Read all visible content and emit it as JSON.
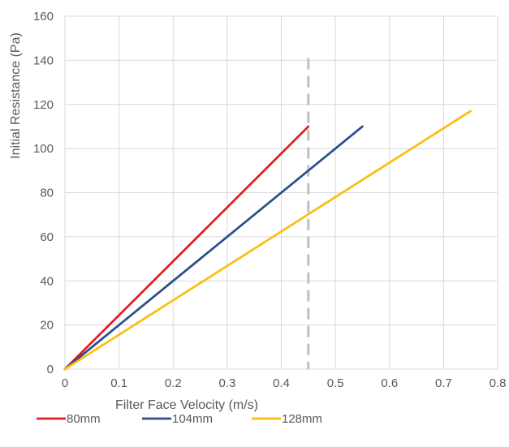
{
  "chart_data": {
    "type": "line",
    "title": "",
    "xlabel": "Filter Face Velocity (m/s)",
    "ylabel": "Initial Resistance (Pa)",
    "xlim": [
      0,
      0.8
    ],
    "ylim": [
      0,
      160
    ],
    "x_ticks": [
      "0",
      "0.1",
      "0.2",
      "0.3",
      "0.4",
      "0.5",
      "0.6",
      "0.7",
      "0.8"
    ],
    "y_ticks": [
      "0",
      "20",
      "40",
      "60",
      "80",
      "100",
      "120",
      "140",
      "160"
    ],
    "grid": true,
    "legend_position": "bottom",
    "series": [
      {
        "name": "80mm",
        "color": "#e41b23",
        "points": [
          [
            0,
            0
          ],
          [
            0.45,
            110
          ]
        ]
      },
      {
        "name": "104mm",
        "color": "#2b4f8c",
        "points": [
          [
            0,
            0
          ],
          [
            0.55,
            110
          ]
        ]
      },
      {
        "name": "128mm",
        "color": "#f9bf11",
        "points": [
          [
            0,
            0
          ],
          [
            0.75,
            117
          ]
        ]
      }
    ],
    "reference_line": {
      "x": 0.45,
      "y_range": [
        0,
        141
      ],
      "color": "#bfbfbf",
      "style": "dashed"
    }
  }
}
